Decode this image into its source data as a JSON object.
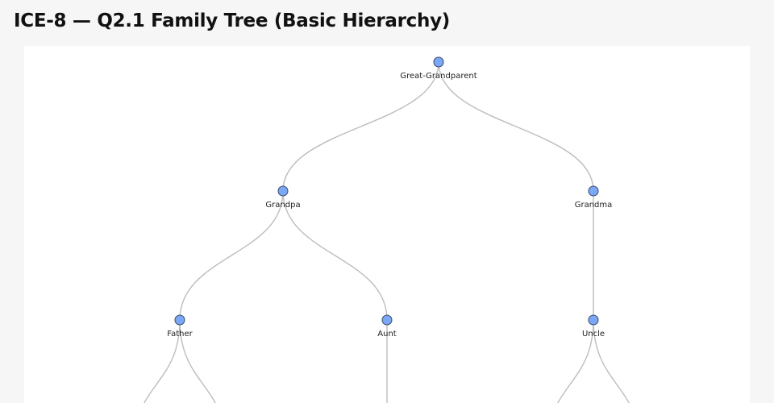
{
  "title": "ICE-8 — Q2.1 Family Tree (Basic Hierarchy)",
  "colors": {
    "node_fill": "#7ba7f7",
    "node_stroke": "#3a4a6a",
    "link": "#bdbdbd",
    "background": "#f6f6f6",
    "panel": "#ffffff"
  },
  "tree": {
    "name": "Great-Grandparent",
    "children": [
      {
        "name": "Grandpa",
        "children": [
          {
            "name": "Father"
          },
          {
            "name": "Aunt"
          }
        ]
      },
      {
        "name": "Grandma",
        "children": [
          {
            "name": "Uncle"
          }
        ]
      }
    ]
  }
}
